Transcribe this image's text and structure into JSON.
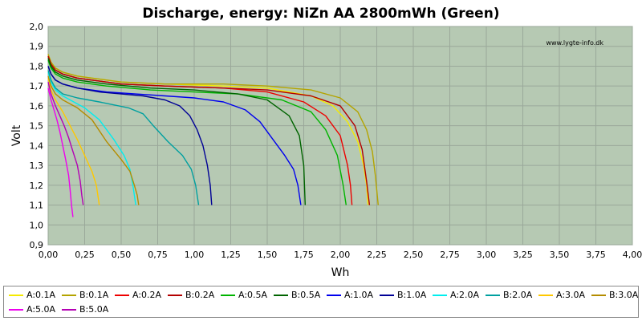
{
  "chart_data": {
    "type": "line",
    "title": "Discharge, energy: NiZn AA 2800mWh (Green)",
    "watermark": "www.lygte-info.dk",
    "xlabel": "Wh",
    "ylabel": "Volt",
    "xlim": [
      0,
      4
    ],
    "ylim": [
      0.9,
      2.0
    ],
    "xticks": [
      "0,00",
      "0,25",
      "0,50",
      "0,75",
      "1,00",
      "1,25",
      "1,50",
      "1,75",
      "2,00",
      "2,25",
      "2,50",
      "2,75",
      "3,00",
      "3,25",
      "3,50",
      "3,75",
      "4,00"
    ],
    "yticks": [
      "0,9",
      "1,0",
      "1,1",
      "1,2",
      "1,3",
      "1,4",
      "1,5",
      "1,6",
      "1,7",
      "1,8",
      "1,9",
      "2,0"
    ],
    "grid": true,
    "plot_background": "#b6c9b3",
    "legend_position": "bottom",
    "series": [
      {
        "name": "A:0.1A",
        "color": "#f5ea00",
        "x": [
          0,
          0.02,
          0.05,
          0.1,
          0.2,
          0.3,
          0.5,
          0.8,
          1.2,
          1.5,
          1.8,
          1.95,
          2.05,
          2.12,
          2.16,
          2.18,
          2.19
        ],
        "y": [
          1.86,
          1.82,
          1.79,
          1.77,
          1.75,
          1.74,
          1.72,
          1.71,
          1.7,
          1.69,
          1.65,
          1.6,
          1.52,
          1.42,
          1.3,
          1.2,
          1.1
        ]
      },
      {
        "name": "B:0.1A",
        "color": "#b4a400",
        "x": [
          0,
          0.02,
          0.05,
          0.1,
          0.2,
          0.3,
          0.5,
          0.8,
          1.2,
          1.5,
          1.8,
          2.0,
          2.12,
          2.18,
          2.22,
          2.24,
          2.26
        ],
        "y": [
          1.86,
          1.82,
          1.79,
          1.77,
          1.75,
          1.74,
          1.72,
          1.71,
          1.71,
          1.7,
          1.68,
          1.64,
          1.57,
          1.48,
          1.37,
          1.25,
          1.1
        ]
      },
      {
        "name": "A:0.2A",
        "color": "#ee0000",
        "x": [
          0,
          0.02,
          0.05,
          0.1,
          0.2,
          0.3,
          0.5,
          0.8,
          1.2,
          1.5,
          1.75,
          1.9,
          2.0,
          2.05,
          2.07,
          2.08
        ],
        "y": [
          1.85,
          1.81,
          1.78,
          1.76,
          1.74,
          1.73,
          1.71,
          1.7,
          1.69,
          1.67,
          1.62,
          1.55,
          1.45,
          1.3,
          1.2,
          1.1
        ]
      },
      {
        "name": "B:0.2A",
        "color": "#b40000",
        "x": [
          0,
          0.02,
          0.05,
          0.1,
          0.2,
          0.3,
          0.5,
          0.8,
          1.2,
          1.5,
          1.8,
          2.0,
          2.1,
          2.15,
          2.18,
          2.2
        ],
        "y": [
          1.85,
          1.81,
          1.78,
          1.76,
          1.74,
          1.73,
          1.71,
          1.7,
          1.69,
          1.68,
          1.65,
          1.6,
          1.5,
          1.38,
          1.22,
          1.1
        ]
      },
      {
        "name": "A:0.5A",
        "color": "#00b400",
        "x": [
          0,
          0.02,
          0.05,
          0.1,
          0.2,
          0.4,
          0.7,
          1.0,
          1.3,
          1.6,
          1.8,
          1.9,
          1.98,
          2.02,
          2.04
        ],
        "y": [
          1.83,
          1.79,
          1.76,
          1.74,
          1.72,
          1.7,
          1.68,
          1.67,
          1.66,
          1.63,
          1.57,
          1.48,
          1.35,
          1.2,
          1.1
        ]
      },
      {
        "name": "B:0.5A",
        "color": "#006400",
        "x": [
          0,
          0.02,
          0.05,
          0.1,
          0.2,
          0.4,
          0.7,
          1.0,
          1.3,
          1.5,
          1.65,
          1.72,
          1.75,
          1.76
        ],
        "y": [
          1.84,
          1.8,
          1.77,
          1.75,
          1.73,
          1.71,
          1.69,
          1.68,
          1.66,
          1.63,
          1.55,
          1.45,
          1.3,
          1.1
        ]
      },
      {
        "name": "A:1.0A",
        "color": "#0000ee",
        "x": [
          0,
          0.02,
          0.05,
          0.1,
          0.2,
          0.4,
          0.6,
          0.8,
          1.0,
          1.2,
          1.35,
          1.45,
          1.55,
          1.62,
          1.68,
          1.71,
          1.73
        ],
        "y": [
          1.8,
          1.76,
          1.73,
          1.71,
          1.69,
          1.67,
          1.66,
          1.65,
          1.64,
          1.62,
          1.58,
          1.52,
          1.42,
          1.35,
          1.28,
          1.2,
          1.1
        ]
      },
      {
        "name": "B:1.0A",
        "color": "#000096",
        "x": [
          0,
          0.02,
          0.05,
          0.1,
          0.2,
          0.35,
          0.5,
          0.65,
          0.8,
          0.9,
          0.97,
          1.02,
          1.06,
          1.09,
          1.11,
          1.12
        ],
        "y": [
          1.8,
          1.76,
          1.73,
          1.71,
          1.69,
          1.67,
          1.66,
          1.65,
          1.63,
          1.6,
          1.55,
          1.48,
          1.4,
          1.3,
          1.2,
          1.1
        ]
      },
      {
        "name": "A:2.0A",
        "color": "#00eeee",
        "x": [
          0,
          0.02,
          0.05,
          0.1,
          0.15,
          0.25,
          0.35,
          0.45,
          0.52,
          0.56,
          0.58,
          0.59,
          0.6
        ],
        "y": [
          1.77,
          1.72,
          1.68,
          1.65,
          1.63,
          1.59,
          1.53,
          1.43,
          1.35,
          1.28,
          1.2,
          1.15,
          1.1
        ]
      },
      {
        "name": "B:2.0A",
        "color": "#00a0a0",
        "x": [
          0,
          0.02,
          0.05,
          0.1,
          0.2,
          0.35,
          0.55,
          0.65,
          0.72,
          0.82,
          0.92,
          0.98,
          1.01,
          1.03
        ],
        "y": [
          1.78,
          1.73,
          1.69,
          1.66,
          1.64,
          1.62,
          1.59,
          1.56,
          1.5,
          1.42,
          1.35,
          1.28,
          1.2,
          1.1
        ]
      },
      {
        "name": "A:3.0A",
        "color": "#ffc800",
        "x": [
          0,
          0.02,
          0.05,
          0.1,
          0.15,
          0.2,
          0.25,
          0.3,
          0.33,
          0.34,
          0.35
        ],
        "y": [
          1.74,
          1.68,
          1.63,
          1.57,
          1.5,
          1.43,
          1.35,
          1.27,
          1.2,
          1.15,
          1.1
        ]
      },
      {
        "name": "B:3.0A",
        "color": "#b48c00",
        "x": [
          0,
          0.02,
          0.05,
          0.1,
          0.2,
          0.3,
          0.4,
          0.5,
          0.56,
          0.59,
          0.61,
          0.62
        ],
        "y": [
          1.75,
          1.7,
          1.66,
          1.63,
          1.59,
          1.53,
          1.42,
          1.33,
          1.27,
          1.2,
          1.15,
          1.1
        ]
      },
      {
        "name": "A:5.0A",
        "color": "#ee00ee",
        "x": [
          0,
          0.02,
          0.04,
          0.06,
          0.08,
          0.1,
          0.12,
          0.14,
          0.15,
          0.16,
          0.17
        ],
        "y": [
          1.69,
          1.63,
          1.58,
          1.53,
          1.47,
          1.4,
          1.33,
          1.25,
          1.18,
          1.1,
          1.04
        ]
      },
      {
        "name": "B:5.0A",
        "color": "#b400b4",
        "x": [
          0,
          0.02,
          0.05,
          0.08,
          0.11,
          0.14,
          0.17,
          0.2,
          0.22,
          0.23,
          0.24
        ],
        "y": [
          1.72,
          1.66,
          1.6,
          1.55,
          1.5,
          1.44,
          1.37,
          1.3,
          1.22,
          1.15,
          1.1
        ]
      }
    ]
  }
}
